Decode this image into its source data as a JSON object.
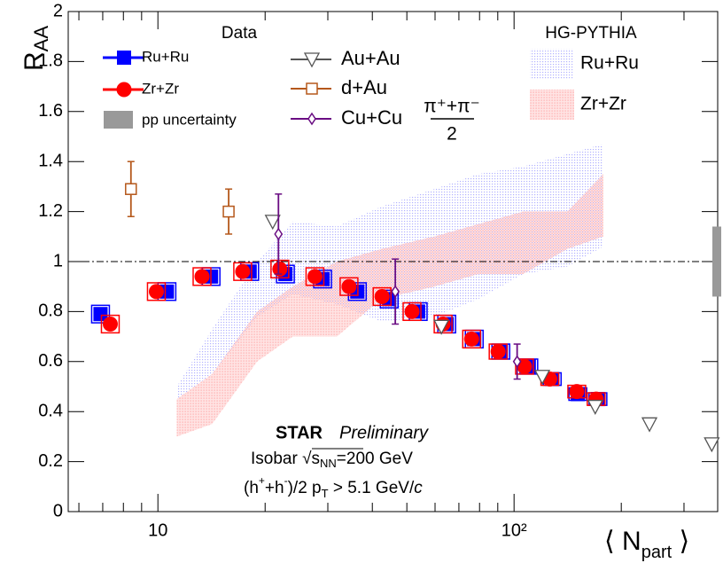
{
  "chart_data": {
    "type": "scatter",
    "log_x": true,
    "xlim": [
      5.6,
      373
    ],
    "ylim": [
      0,
      2
    ],
    "xticks": [
      10,
      {
        "value": 100,
        "label": "10²"
      }
    ],
    "xminorticks": [
      6,
      7,
      8,
      9,
      20,
      30,
      40,
      50,
      60,
      70,
      80,
      90,
      200,
      300
    ],
    "yticks": [
      0,
      0.2,
      0.4,
      0.6,
      0.8,
      1,
      1.2,
      1.4,
      1.6,
      1.8,
      2
    ],
    "xlabel": [
      "⟨ N",
      "part",
      " ⟩"
    ],
    "ylabel": [
      "R",
      "AA"
    ],
    "reference_line": 1,
    "legend_headers": [
      "Data",
      "HG-PYTHIA"
    ],
    "series": [
      {
        "name": "Ru+Ru",
        "color": "#0000ff",
        "marker": "square",
        "x": [
          6.9,
          10.6,
          14.1,
          18.1,
          22.8,
          29.0,
          36.3,
          44.6,
          53.8,
          64.7,
          77.3,
          91.8,
          110,
          128,
          151,
          172
        ],
        "values": [
          0.79,
          0.88,
          0.94,
          0.96,
          0.95,
          0.93,
          0.88,
          0.85,
          0.8,
          0.75,
          0.69,
          0.64,
          0.58,
          0.53,
          0.47,
          0.45
        ],
        "errors": [
          0.035,
          0.035,
          0.035,
          0.035,
          0.035,
          0.035,
          0.035,
          0.035,
          0.035,
          0.035,
          0.035,
          0.03,
          0.03,
          0.025,
          0.025,
          0.025
        ]
      },
      {
        "name": "Zr+Zr",
        "color": "#ff0000",
        "marker": "circle",
        "x": [
          7.35,
          9.9,
          13.3,
          17.3,
          22.0,
          27.6,
          34.4,
          42.6,
          51.7,
          63.2,
          76.0,
          90.2,
          107,
          126,
          150,
          170
        ],
        "values": [
          0.75,
          0.88,
          0.94,
          0.96,
          0.97,
          0.94,
          0.9,
          0.86,
          0.8,
          0.75,
          0.69,
          0.64,
          0.58,
          0.53,
          0.48,
          0.45
        ],
        "errors": [
          0.035,
          0.035,
          0.035,
          0.035,
          0.035,
          0.035,
          0.035,
          0.035,
          0.035,
          0.035,
          0.035,
          0.03,
          0.03,
          0.025,
          0.025,
          0.025
        ]
      },
      {
        "name": "Au+Au",
        "color": "#555555",
        "marker": "triangle-down",
        "x": [
          21.0,
          62.5,
          120,
          169,
          240,
          359
        ],
        "values": [
          1.16,
          0.74,
          0.54,
          0.42,
          0.35,
          0.27
        ]
      },
      {
        "name": "d+Au",
        "color": "#b5581b",
        "marker": "open-square",
        "x": [
          8.4,
          15.8
        ],
        "values": [
          1.29,
          1.2
        ],
        "errors": [
          0.11,
          0.09
        ]
      },
      {
        "name": "Cu+Cu",
        "color": "#6a0d83",
        "marker": "open-diamond",
        "x": [
          21.8,
          46.4,
          102
        ],
        "values": [
          1.11,
          0.88,
          0.6
        ],
        "errors": [
          0.16,
          0.13,
          0.07
        ]
      }
    ],
    "pion_fraction": [
      "π⁺+π⁻",
      "2"
    ],
    "bands": [
      {
        "name": "Ru+Ru",
        "color": "#7070ff",
        "x": [
          11.3,
          14.2,
          19.0,
          23.9,
          31.8,
          42.4,
          59.7,
          79.4,
          106,
          141,
          178
        ],
        "low": [
          0.45,
          0.55,
          0.78,
          0.87,
          0.83,
          0.76,
          0.78,
          0.85,
          0.95,
          0.98,
          1.06
        ],
        "high": [
          0.5,
          0.73,
          1.0,
          1.16,
          1.14,
          1.22,
          1.29,
          1.35,
          1.38,
          1.43,
          1.47
        ]
      },
      {
        "name": "Zr+Zr",
        "color": "#ff8080",
        "x": [
          11.3,
          14.2,
          19.0,
          23.9,
          31.8,
          42.4,
          59.7,
          79.4,
          106,
          141,
          178
        ],
        "low": [
          0.3,
          0.35,
          0.6,
          0.7,
          0.7,
          0.85,
          0.9,
          0.95,
          0.95,
          1.05,
          1.1
        ],
        "high": [
          0.45,
          0.55,
          0.8,
          0.9,
          1.0,
          1.05,
          1.1,
          1.15,
          1.2,
          1.2,
          1.35
        ]
      }
    ],
    "pp_uncertainty": {
      "label": "pp uncertainty",
      "value": 0.14,
      "color": "#999999"
    },
    "annotations": {
      "star": "STAR",
      "preliminary": "Preliminary",
      "isobar": [
        "Isobar √",
        "s",
        "NN",
        "=200 GeV"
      ],
      "cut": [
        "(h",
        "+",
        "+h",
        "-",
        ")/2  p",
        "T",
        " > 5.1 GeV/",
        "c"
      ]
    }
  }
}
